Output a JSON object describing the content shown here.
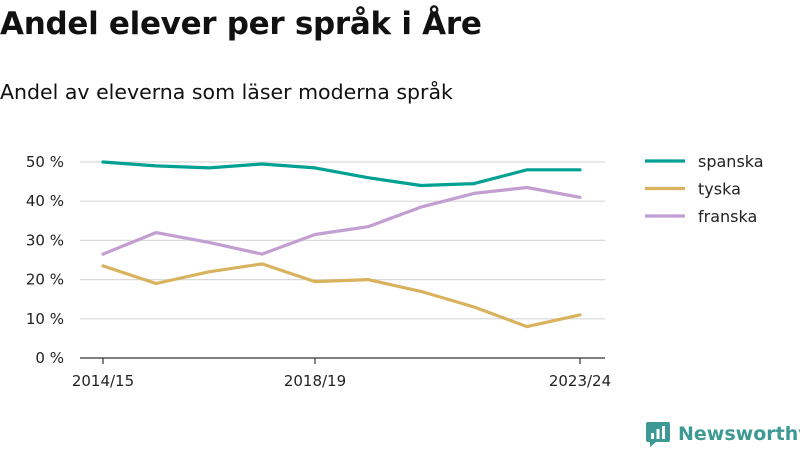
{
  "title": "Andel elever per språk i Åre",
  "subtitle": "Andel av eleverna som läser moderna språk",
  "brand": {
    "name": "Newsworthy",
    "logo_icon": "newsworthy-logo-icon",
    "logo_color": "#3d9993"
  },
  "chart_data": {
    "type": "line",
    "title": "Andel elever per språk i Åre",
    "subtitle": "Andel av eleverna som läser moderna språk",
    "xlabel": "",
    "ylabel": "",
    "x": [
      "2014/15",
      "2015/16",
      "2016/17",
      "2017/18",
      "2018/19",
      "2019/20",
      "2020/21",
      "2021/22",
      "2022/23",
      "2023/24"
    ],
    "x_tick_labels": [
      "2014/15",
      "2018/19",
      "2023/24"
    ],
    "y_ticks": [
      0,
      10,
      20,
      30,
      40,
      50
    ],
    "y_tick_labels": [
      "0 %",
      "10 %",
      "20 %",
      "30 %",
      "40 %",
      "50 %"
    ],
    "ylim": [
      0,
      50
    ],
    "grid": "horizontal",
    "legend_position": "right",
    "series": [
      {
        "name": "spanska",
        "color": "#00a193",
        "values": [
          50,
          49,
          48.5,
          49.5,
          48.5,
          46,
          44,
          44.5,
          48,
          48
        ]
      },
      {
        "name": "tyska",
        "color": "#d9b25e",
        "values": [
          23.5,
          19,
          22,
          24,
          19.5,
          20,
          17,
          13,
          8,
          11
        ]
      },
      {
        "name": "franska",
        "color": "#c39ed0",
        "values": [
          26.5,
          32,
          29.5,
          26.5,
          31.5,
          33.5,
          38.5,
          42,
          43.5,
          41
        ]
      }
    ]
  }
}
